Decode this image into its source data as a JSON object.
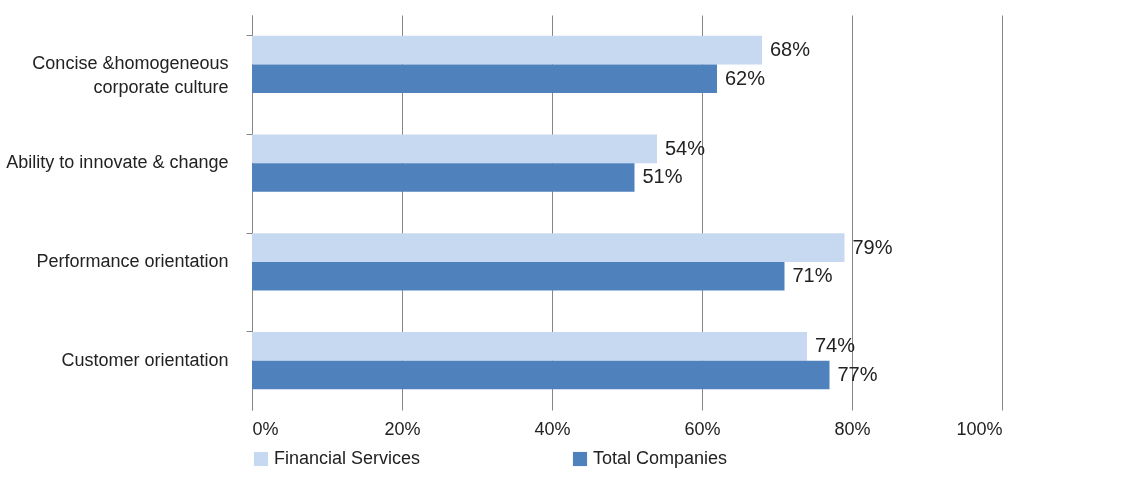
{
  "chart_data": {
    "type": "bar",
    "orientation": "horizontal",
    "categories": [
      "Concise &homogeneous corporate culture",
      "Ability to innovate & change",
      "Performance orientation",
      "Customer orientation"
    ],
    "series": [
      {
        "name": "Financial Services",
        "color": "#c6d9f1",
        "values": [
          68,
          54,
          79,
          74
        ],
        "value_labels": [
          "68%",
          "54%",
          "79%",
          "74%"
        ]
      },
      {
        "name": "Total Companies",
        "color": "#4f81bd",
        "values": [
          62,
          51,
          71,
          77
        ],
        "value_labels": [
          "62%",
          "51%",
          "71%",
          "77%"
        ]
      }
    ],
    "xlim": [
      0,
      100
    ],
    "xticks": [
      {
        "value": 0,
        "label": "0%"
      },
      {
        "value": 20,
        "label": "20%"
      },
      {
        "value": 40,
        "label": "40%"
      },
      {
        "value": 60,
        "label": "60%"
      },
      {
        "value": 80,
        "label": "80%"
      },
      {
        "value": 100,
        "label": "100%"
      }
    ],
    "grid": "x",
    "legend": "bottom"
  }
}
